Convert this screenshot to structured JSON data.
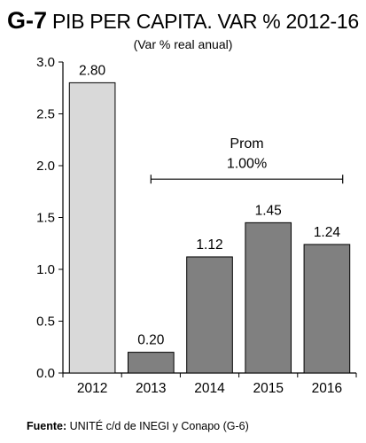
{
  "header": {
    "code": "G-7",
    "title": "PIB PER CAPITA. VAR % 2012-16",
    "subtitle": "(Var % real anual)"
  },
  "annotation": {
    "label_line1": "Prom",
    "label_line2": "1.00%"
  },
  "footer": {
    "source_label": "Fuente:",
    "source_text": "UNITÉ c/d de INEGI y Conapo (G-6)"
  },
  "colors": {
    "first_bar": "#d9d9d9",
    "other_bars": "#808080",
    "bar_stroke": "#000000"
  },
  "chart_data": {
    "type": "bar",
    "categories": [
      "2012",
      "2013",
      "2014",
      "2015",
      "2016"
    ],
    "values": [
      2.8,
      0.2,
      1.12,
      1.45,
      1.24
    ],
    "data_labels": [
      "2.80",
      "0.20",
      "1.12",
      "1.45",
      "1.24"
    ],
    "ylim": [
      0,
      3.0
    ],
    "yticks": [
      0.0,
      0.5,
      1.0,
      1.5,
      2.0,
      2.5,
      3.0
    ],
    "ytick_labels": [
      "0.0",
      "0.5",
      "1.0",
      "1.5",
      "2.0",
      "2.5",
      "3.0"
    ],
    "grid": false,
    "legend": "none",
    "average_bracket": {
      "from_category": "2013",
      "to_category": "2016"
    }
  }
}
